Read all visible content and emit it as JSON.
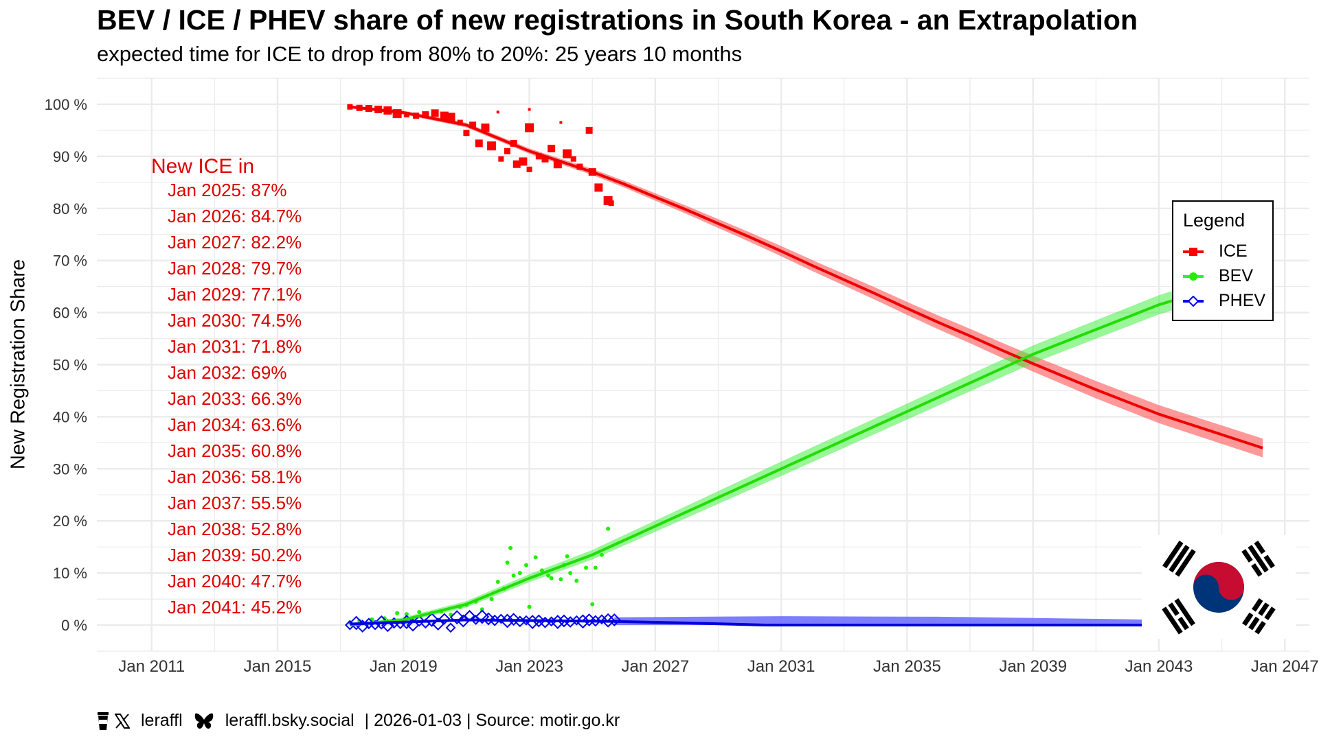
{
  "chart_data": {
    "type": "scatter",
    "title": "BEV / ICE / PHEV share of new registrations in South Korea - an Extrapolation",
    "subtitle": "expected time for ICE to drop from 80% to 20%: 25 years 10 months",
    "ylabel": "New Registration Share",
    "xlabel": "",
    "xlim": [
      2009.26,
      2047.78
    ],
    "ylim": [
      -5,
      105
    ],
    "grid": true,
    "x_ticks": [
      "Jan 2011",
      "Jan 2015",
      "Jan 2019",
      "Jan 2023",
      "Jan 2027",
      "Jan 2031",
      "Jan 2035",
      "Jan 2039",
      "Jan 2043",
      "Jan 2047"
    ],
    "x_tick_years": [
      2011,
      2015,
      2019,
      2023,
      2027,
      2031,
      2035,
      2039,
      2043,
      2047
    ],
    "y_ticks": [
      "0 %",
      "10 %",
      "20 %",
      "30 %",
      "40 %",
      "50 %",
      "60 %",
      "70 %",
      "80 %",
      "90 %",
      "100 %"
    ],
    "y_tick_values": [
      0,
      10,
      20,
      30,
      40,
      50,
      60,
      70,
      80,
      90,
      100
    ],
    "legend": {
      "title": "Legend",
      "placement": "right",
      "entries": [
        "ICE",
        "BEV",
        "PHEV"
      ]
    },
    "series": [
      {
        "name": "ICE",
        "color": "#ff0000",
        "marker": "square",
        "points": [
          [
            2017.3,
            99.5
          ],
          [
            2017.6,
            99.3
          ],
          [
            2017.9,
            99.2
          ],
          [
            2018.2,
            99
          ],
          [
            2018.5,
            98.8
          ],
          [
            2018.8,
            98.2
          ],
          [
            2019.1,
            98
          ],
          [
            2019.4,
            97.8
          ],
          [
            2019.7,
            98
          ],
          [
            2020.0,
            98.3
          ],
          [
            2020.3,
            97.8
          ],
          [
            2020.5,
            97.5
          ],
          [
            2020.8,
            96.5
          ],
          [
            2021.0,
            94.5
          ],
          [
            2021.2,
            96
          ],
          [
            2021.4,
            92.5
          ],
          [
            2021.6,
            95.5
          ],
          [
            2021.8,
            92
          ],
          [
            2022.1,
            89.5
          ],
          [
            2022.3,
            91
          ],
          [
            2022.5,
            92.5
          ],
          [
            2022.6,
            88.5
          ],
          [
            2022.8,
            89
          ],
          [
            2023.0,
            95.5
          ],
          [
            2023.0,
            87.5
          ],
          [
            2023.3,
            90
          ],
          [
            2023.5,
            89.5
          ],
          [
            2023.7,
            91.5
          ],
          [
            2023.9,
            88.5
          ],
          [
            2024.2,
            90.5
          ],
          [
            2024.4,
            89.5
          ],
          [
            2024.6,
            88
          ],
          [
            2024.9,
            95
          ],
          [
            2025.0,
            87
          ],
          [
            2025.2,
            84
          ],
          [
            2025.5,
            81.5
          ],
          [
            2025.6,
            81
          ],
          [
            2023.0,
            99
          ],
          [
            2022.0,
            98.5
          ],
          [
            2024.0,
            96.5
          ]
        ],
        "trend": [
          [
            2017.3,
            99.5
          ],
          [
            2019,
            98.4
          ],
          [
            2021,
            96
          ],
          [
            2023,
            91
          ],
          [
            2025,
            87
          ],
          [
            2026,
            84.7
          ],
          [
            2027,
            82.2
          ],
          [
            2028,
            79.7
          ],
          [
            2029,
            77.1
          ],
          [
            2030,
            74.5
          ],
          [
            2031,
            71.8
          ],
          [
            2032,
            69
          ],
          [
            2033,
            66.3
          ],
          [
            2034,
            63.6
          ],
          [
            2035,
            60.8
          ],
          [
            2036,
            58.1
          ],
          [
            2037,
            55.5
          ],
          [
            2038,
            52.8
          ],
          [
            2039,
            50.2
          ],
          [
            2040,
            47.7
          ],
          [
            2041,
            45.2
          ],
          [
            2043,
            40.5
          ],
          [
            2046.3,
            34
          ]
        ]
      },
      {
        "name": "BEV",
        "color": "#22ee00",
        "marker": "circle",
        "points": [
          [
            2017.3,
            0.5
          ],
          [
            2017.6,
            0.8
          ],
          [
            2018.0,
            1.1
          ],
          [
            2018.4,
            1.3
          ],
          [
            2018.8,
            2.3
          ],
          [
            2019.1,
            2.1
          ],
          [
            2019.5,
            2.5
          ],
          [
            2019.9,
            2.3
          ],
          [
            2020.2,
            2.6
          ],
          [
            2020.5,
            2.0
          ],
          [
            2020.8,
            3.5
          ],
          [
            2021.0,
            3.9
          ],
          [
            2021.3,
            4.5
          ],
          [
            2021.5,
            3.0
          ],
          [
            2021.8,
            5.0
          ],
          [
            2022.0,
            8.3
          ],
          [
            2022.2,
            7.0
          ],
          [
            2022.5,
            9.5
          ],
          [
            2022.7,
            10
          ],
          [
            2022.9,
            11.5
          ],
          [
            2023.0,
            3.5
          ],
          [
            2023.2,
            13
          ],
          [
            2023.4,
            10.5
          ],
          [
            2023.6,
            9.5
          ],
          [
            2023.7,
            9
          ],
          [
            2024.0,
            8.8
          ],
          [
            2024.1,
            11.5
          ],
          [
            2024.3,
            10
          ],
          [
            2024.5,
            8.5
          ],
          [
            2024.8,
            11
          ],
          [
            2025.0,
            4
          ],
          [
            2025.1,
            11
          ],
          [
            2025.3,
            13.5
          ],
          [
            2025.5,
            18.5
          ],
          [
            2022.3,
            12
          ],
          [
            2022.4,
            14.8
          ],
          [
            2024.2,
            13.2
          ]
        ],
        "trend": [
          [
            2017.3,
            0
          ],
          [
            2019,
            1
          ],
          [
            2021,
            4
          ],
          [
            2023,
            9
          ],
          [
            2025,
            13.5
          ],
          [
            2027,
            19
          ],
          [
            2029,
            24.5
          ],
          [
            2031,
            30
          ],
          [
            2035,
            41
          ],
          [
            2039,
            52
          ],
          [
            2043,
            61.5
          ],
          [
            2046.3,
            67.5
          ]
        ]
      },
      {
        "name": "PHEV",
        "color": "#0000ee",
        "marker": "diamond",
        "points": [
          [
            2017.3,
            0
          ],
          [
            2017.5,
            0.4
          ],
          [
            2017.7,
            -0.2
          ],
          [
            2017.9,
            0.3
          ],
          [
            2018.1,
            0
          ],
          [
            2018.3,
            0.5
          ],
          [
            2018.5,
            -0.1
          ],
          [
            2018.7,
            0.4
          ],
          [
            2018.9,
            0.2
          ],
          [
            2019.1,
            0.6
          ],
          [
            2019.3,
            0
          ],
          [
            2019.5,
            0.8
          ],
          [
            2019.7,
            0.3
          ],
          [
            2019.9,
            1
          ],
          [
            2020.1,
            0.2
          ],
          [
            2020.3,
            1.2
          ],
          [
            2020.5,
            -0.5
          ],
          [
            2020.7,
            1.5
          ],
          [
            2020.9,
            0.8
          ],
          [
            2021.1,
            1.8
          ],
          [
            2021.3,
            1
          ],
          [
            2021.5,
            1.6
          ],
          [
            2021.7,
            1.2
          ],
          [
            2021.9,
            0.9
          ],
          [
            2022.1,
            1.2
          ],
          [
            2022.3,
            0.8
          ],
          [
            2022.5,
            1.1
          ],
          [
            2022.7,
            0.7
          ],
          [
            2022.9,
            0.9
          ],
          [
            2023.1,
            0.6
          ],
          [
            2023.3,
            0.8
          ],
          [
            2023.5,
            0.5
          ],
          [
            2023.7,
            0.7
          ],
          [
            2023.9,
            0.6
          ],
          [
            2024.1,
            0.8
          ],
          [
            2024.3,
            0.6
          ],
          [
            2024.5,
            0.9
          ],
          [
            2024.7,
            0.7
          ],
          [
            2024.9,
            1
          ],
          [
            2025.1,
            0.8
          ],
          [
            2025.3,
            1.1
          ],
          [
            2025.5,
            0.9
          ],
          [
            2025.7,
            1
          ]
        ],
        "trend": [
          [
            2017.3,
            0.2
          ],
          [
            2021,
            1
          ],
          [
            2025.7,
            0.7
          ],
          [
            2028,
            0.4
          ],
          [
            2030.5,
            0
          ],
          [
            2043.5,
            0
          ]
        ],
        "band_upper": [
          [
            2025.7,
            1.5
          ],
          [
            2031,
            1.7
          ],
          [
            2036,
            1.6
          ],
          [
            2043.5,
            1
          ]
        ]
      }
    ],
    "annotation": {
      "heading": "New ICE in",
      "lines": [
        "Jan 2025: 87%",
        "Jan 2026: 84.7%",
        "Jan 2027: 82.2%",
        "Jan 2028: 79.7%",
        "Jan 2029: 77.1%",
        "Jan 2030: 74.5%",
        "Jan 2031: 71.8%",
        "Jan 2032: 69%",
        "Jan 2033: 66.3%",
        "Jan 2034: 63.6%",
        "Jan 2035: 60.8%",
        "Jan 2036: 58.1%",
        "Jan 2037: 55.5%",
        "Jan 2038: 52.8%",
        "Jan 2039: 50.2%",
        "Jan 2040: 47.7%",
        "Jan 2041: 45.2%"
      ],
      "color": "#dd0000"
    }
  },
  "footer": {
    "handle": "leraffl",
    "bluesky": "leraffl.bsky.social",
    "rest": " | 2026-01-03 | Source: motir.go.kr"
  },
  "icons": [
    "coffee-cup-icon",
    "x-logo-icon",
    "bluesky-butterfly-icon",
    "south-korea-flag-icon"
  ]
}
